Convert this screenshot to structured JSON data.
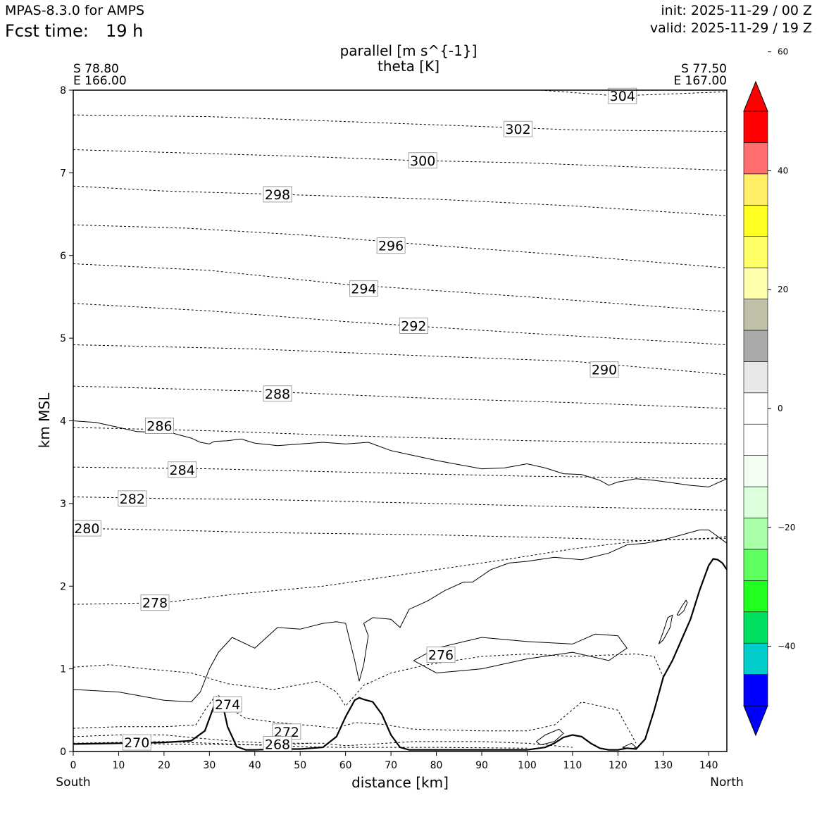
{
  "header": {
    "model": "MPAS-8.3.0 for AMPS",
    "fcst_label": "Fcst time:",
    "fcst_value": "19 h",
    "init": "init: 2025-11-29 / 00 Z",
    "valid": "valid: 2025-11-29 / 19 Z"
  },
  "plot": {
    "title_line1": "parallel [m s^{-1}]",
    "title_line2": "theta [K]",
    "left_lat": "S 78.80",
    "left_lon": "E 166.00",
    "right_lat": "S 77.50",
    "right_lon": "E 167.00",
    "left_end": "South",
    "right_end": "North"
  },
  "colors": {
    "colorbar": [
      "#0000ff",
      "#00cccc",
      "#00e060",
      "#20ff20",
      "#60ff60",
      "#aaffaa",
      "#dcffdc",
      "#f2fff2",
      "#ffffff",
      "#ffffff",
      "#e8e8e8",
      "#aaaaaa",
      "#c0c0a8",
      "#ffffaa",
      "#ffff66",
      "#ffff22",
      "#ffee66",
      "#ff6e6e",
      "#ff0000"
    ]
  },
  "chart_data": {
    "type": "line",
    "xlabel": "distance [km]",
    "ylabel": "km MSL",
    "xlim": [
      0,
      144
    ],
    "ylim": [
      0,
      8
    ],
    "xticks": [
      "0",
      "10",
      "20",
      "30",
      "40",
      "50",
      "60",
      "70",
      "80",
      "90",
      "100",
      "110",
      "120",
      "130",
      "140"
    ],
    "yticks": [
      "0",
      "1",
      "2",
      "3",
      "4",
      "5",
      "6",
      "7",
      "8"
    ],
    "colorbar_ticks": [
      "60",
      "40",
      "20",
      "0",
      "−20",
      "−40"
    ],
    "colorbar_range": [
      -50,
      50
    ],
    "terrain": {
      "x": [
        0,
        10,
        20,
        26,
        29,
        31,
        32,
        33,
        34,
        36,
        38,
        40,
        45,
        50,
        55,
        58,
        60,
        62,
        63,
        64,
        66,
        68,
        70,
        72,
        74,
        76,
        80,
        90,
        100,
        104,
        106,
        108,
        110,
        112,
        114,
        116,
        118,
        120,
        122,
        124,
        126,
        128,
        130,
        132,
        134,
        136,
        138,
        140,
        141,
        142,
        143,
        144
      ],
      "y": [
        0.09,
        0.1,
        0.11,
        0.13,
        0.25,
        0.55,
        0.63,
        0.55,
        0.3,
        0.06,
        0.02,
        0.02,
        0.03,
        0.03,
        0.05,
        0.18,
        0.42,
        0.62,
        0.65,
        0.63,
        0.6,
        0.45,
        0.2,
        0.05,
        0.02,
        0.02,
        0.02,
        0.02,
        0.02,
        0.05,
        0.1,
        0.17,
        0.2,
        0.18,
        0.1,
        0.04,
        0.02,
        0.02,
        0.04,
        0.03,
        0.15,
        0.5,
        0.9,
        1.1,
        1.35,
        1.6,
        1.95,
        2.25,
        2.33,
        2.32,
        2.28,
        2.2
      ]
    },
    "theta_contours": [
      {
        "value": 304,
        "label": "304",
        "x": [
          103,
          120,
          144
        ],
        "y": [
          8.0,
          7.93,
          7.98
        ],
        "lx": 121,
        "ly": 7.93
      },
      {
        "value": 302,
        "label": "302",
        "x": [
          0,
          30,
          60,
          90,
          110,
          144
        ],
        "y": [
          7.7,
          7.68,
          7.62,
          7.56,
          7.52,
          7.5
        ],
        "lx": 98,
        "ly": 7.53
      },
      {
        "value": 300,
        "label": "300",
        "x": [
          0,
          25,
          50,
          75,
          100,
          144
        ],
        "y": [
          7.28,
          7.24,
          7.2,
          7.15,
          7.12,
          7.03
        ],
        "lx": 77,
        "ly": 7.15
      },
      {
        "value": 298,
        "label": "298",
        "x": [
          0,
          20,
          45,
          80,
          110,
          144
        ],
        "y": [
          6.84,
          6.78,
          6.74,
          6.68,
          6.6,
          6.48
        ],
        "lx": 45,
        "ly": 6.74
      },
      {
        "value": 296,
        "label": "296",
        "x": [
          0,
          25,
          50,
          80,
          110,
          144
        ],
        "y": [
          6.37,
          6.33,
          6.25,
          6.12,
          6.0,
          5.85
        ],
        "lx": 70,
        "ly": 6.12
      },
      {
        "value": 294,
        "label": "294",
        "x": [
          0,
          30,
          60,
          100,
          144
        ],
        "y": [
          5.9,
          5.82,
          5.65,
          5.5,
          5.32
        ],
        "lx": 64,
        "ly": 5.6
      },
      {
        "value": 292,
        "label": "292",
        "x": [
          0,
          30,
          60,
          100,
          144
        ],
        "y": [
          5.42,
          5.33,
          5.2,
          5.06,
          4.92
        ],
        "lx": 75,
        "ly": 5.15
      },
      {
        "value": 290,
        "label": "290",
        "x": [
          0,
          40,
          80,
          110,
          144
        ],
        "y": [
          4.92,
          4.87,
          4.78,
          4.72,
          4.56
        ],
        "lx": 117,
        "ly": 4.62
      },
      {
        "value": 288,
        "label": "288",
        "x": [
          0,
          40,
          80,
          110,
          144
        ],
        "y": [
          4.42,
          4.36,
          4.27,
          4.22,
          4.15
        ],
        "lx": 45,
        "ly": 4.33
      },
      {
        "value": 286,
        "label": "286",
        "x": [
          0,
          30,
          60,
          100,
          144
        ],
        "y": [
          3.92,
          3.88,
          3.82,
          3.76,
          3.72
        ],
        "lx": 19,
        "ly": 3.94
      },
      {
        "value": 284,
        "label": "284",
        "x": [
          0,
          30,
          60,
          100,
          144
        ],
        "y": [
          3.44,
          3.42,
          3.38,
          3.33,
          3.3
        ],
        "lx": 24,
        "ly": 3.41
      },
      {
        "value": 282,
        "label": "282",
        "x": [
          0,
          20,
          40,
          80,
          110,
          144
        ],
        "y": [
          3.08,
          3.06,
          3.05,
          3.0,
          2.96,
          2.92
        ],
        "lx": 13,
        "ly": 3.06
      },
      {
        "value": 280,
        "label": "280",
        "x": [
          0,
          20,
          40,
          80,
          110,
          125,
          144
        ],
        "y": [
          2.7,
          2.68,
          2.65,
          2.62,
          2.58,
          2.55,
          2.58
        ],
        "lx": 3,
        "ly": 2.7
      },
      {
        "value": 278,
        "label": "278",
        "x": [
          0,
          20,
          35,
          55,
          65,
          80,
          95,
          110,
          125,
          140,
          144
        ],
        "y": [
          1.78,
          1.8,
          1.9,
          2.0,
          2.08,
          2.2,
          2.32,
          2.45,
          2.55,
          2.58,
          2.6
        ],
        "lx": 18,
        "ly": 1.8
      },
      {
        "value": 276,
        "label": "276",
        "x": [
          0,
          8,
          16,
          26,
          34,
          44,
          54,
          58,
          60,
          64,
          70,
          78,
          90,
          100,
          110,
          124,
          128,
          130
        ],
        "y": [
          1.02,
          1.05,
          1.0,
          0.95,
          0.82,
          0.75,
          0.85,
          0.72,
          0.55,
          0.8,
          0.95,
          1.05,
          1.15,
          1.18,
          1.15,
          1.18,
          1.15,
          0.9
        ],
        "lx": 81,
        "ly": 1.17
      },
      {
        "value": 274,
        "label": "274",
        "x": [
          0,
          10,
          20,
          27,
          29,
          31,
          32,
          33,
          35,
          38,
          45,
          55,
          58,
          62,
          68,
          75,
          90,
          100,
          106,
          112,
          120,
          122,
          124
        ],
        "y": [
          0.28,
          0.3,
          0.3,
          0.32,
          0.5,
          0.65,
          0.68,
          0.62,
          0.5,
          0.4,
          0.35,
          0.3,
          0.28,
          0.35,
          0.33,
          0.27,
          0.25,
          0.25,
          0.32,
          0.6,
          0.5,
          0.3,
          0.1
        ],
        "lx": 34,
        "ly": 0.57
      },
      {
        "value": 272,
        "label": "272",
        "x": [
          0,
          10,
          20,
          28,
          36,
          45,
          55,
          60,
          75,
          90,
          100,
          110
        ],
        "y": [
          0.18,
          0.2,
          0.2,
          0.16,
          0.12,
          0.1,
          0.1,
          0.07,
          0.12,
          0.12,
          0.1,
          0.05
        ],
        "lx": 47,
        "ly": 0.24
      },
      {
        "value": 270,
        "label": "270",
        "x": [
          0,
          10,
          20,
          30,
          40,
          50,
          58,
          70,
          80,
          100
        ],
        "y": [
          0.1,
          0.11,
          0.12,
          0.1,
          0.08,
          0.06,
          0.05,
          0.05,
          0.05,
          0.04
        ],
        "lx": 14,
        "ly": 0.11
      },
      {
        "value": 268,
        "label": "268",
        "x": [
          2,
          6,
          38,
          45,
          52
        ],
        "y": [
          0.1,
          0.1,
          0.08,
          0.08,
          0.1
        ],
        "lx": 45,
        "ly": 0.09
      }
    ],
    "wind_zero_contours": [
      {
        "x": [
          0,
          5,
          10,
          14,
          18,
          22,
          24,
          26,
          28,
          30,
          31
        ],
        "y": [
          4.0,
          3.98,
          3.92,
          3.87,
          3.86,
          3.85,
          3.82,
          3.79,
          3.74,
          3.72,
          3.75
        ]
      },
      {
        "x": [
          31,
          34,
          37,
          40,
          45,
          50,
          55,
          60,
          65,
          70,
          75,
          80,
          85,
          90,
          95,
          100,
          104,
          108,
          112,
          116,
          118,
          120,
          124,
          128,
          132,
          136,
          140,
          144
        ],
        "y": [
          3.75,
          3.76,
          3.78,
          3.73,
          3.7,
          3.72,
          3.74,
          3.72,
          3.74,
          3.64,
          3.58,
          3.52,
          3.47,
          3.42,
          3.43,
          3.48,
          3.43,
          3.36,
          3.35,
          3.28,
          3.22,
          3.26,
          3.3,
          3.28,
          3.25,
          3.22,
          3.2,
          3.3
        ]
      },
      {
        "x": [
          0,
          10,
          20,
          26,
          28,
          30,
          32,
          35,
          40,
          45,
          50,
          55,
          58,
          60,
          62,
          63,
          64,
          65,
          64,
          66,
          70,
          72,
          74,
          78,
          82,
          86,
          88,
          92,
          96,
          100,
          106,
          112,
          118,
          122,
          126,
          130,
          134,
          138,
          140,
          142,
          144
        ],
        "y": [
          0.75,
          0.72,
          0.62,
          0.6,
          0.72,
          1.0,
          1.2,
          1.38,
          1.25,
          1.5,
          1.48,
          1.55,
          1.57,
          1.55,
          1.1,
          0.85,
          1.05,
          1.4,
          1.55,
          1.62,
          1.6,
          1.5,
          1.72,
          1.82,
          1.95,
          2.05,
          2.05,
          2.2,
          2.28,
          2.3,
          2.35,
          2.32,
          2.4,
          2.5,
          2.52,
          2.56,
          2.62,
          2.68,
          2.68,
          2.6,
          2.52
        ]
      },
      {
        "x": [
          75,
          80,
          90,
          100,
          110,
          115,
          120,
          122,
          118,
          110,
          100,
          90,
          80,
          75
        ],
        "y": [
          1.1,
          1.25,
          1.38,
          1.33,
          1.3,
          1.42,
          1.4,
          1.25,
          1.1,
          1.2,
          1.12,
          1.0,
          0.95,
          1.1
        ]
      },
      {
        "x": [
          129,
          130,
          131,
          132,
          131.5,
          130,
          129
        ],
        "y": [
          1.3,
          1.45,
          1.62,
          1.65,
          1.5,
          1.35,
          1.3
        ]
      },
      {
        "x": [
          133,
          134,
          135,
          135.3,
          134.5,
          133.5,
          133
        ],
        "y": [
          1.65,
          1.75,
          1.83,
          1.8,
          1.7,
          1.65,
          1.65
        ]
      },
      {
        "x": [
          102,
          104,
          107,
          108,
          106,
          103,
          102
        ],
        "y": [
          0.12,
          0.2,
          0.27,
          0.22,
          0.12,
          0.08,
          0.12
        ]
      },
      {
        "x": [
          121,
          123,
          124,
          123,
          121
        ],
        "y": [
          0.05,
          0.1,
          0.05,
          0.03,
          0.05
        ]
      }
    ]
  }
}
